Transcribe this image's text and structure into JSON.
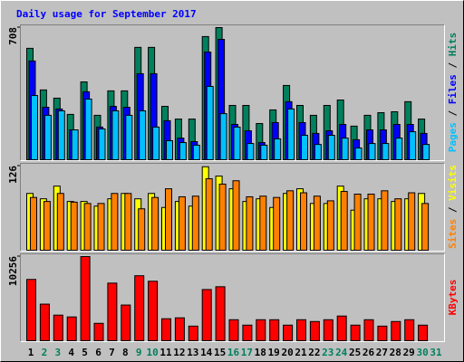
{
  "chart_data": [
    {
      "type": "bar",
      "title": "Daily usage for September 2017",
      "ylim": [
        0,
        708
      ],
      "yticks": [
        708
      ],
      "legend_separator": " / ",
      "series": [
        {
          "name": "Pages",
          "color": "#00c0ff",
          "values": [
            344,
            238,
            262,
            160,
            325,
            165,
            262,
            238,
            262,
            175,
            102,
            92,
            78,
            393,
            247,
            175,
            87,
            78,
            112,
            272,
            131,
            82,
            131,
            116,
            63,
            87,
            87,
            116,
            150,
            82,
            null
          ]
        },
        {
          "name": "Files",
          "color": "#0000ff",
          "values": [
            529,
            281,
            272,
            160,
            364,
            175,
            286,
            281,
            461,
            461,
            209,
            116,
            97,
            577,
            645,
            189,
            155,
            92,
            199,
            311,
            199,
            141,
            155,
            189,
            107,
            160,
            160,
            189,
            189,
            141,
            null
          ]
        },
        {
          "name": "Hits",
          "color": "#00805c",
          "values": [
            597,
            374,
            330,
            243,
            417,
            238,
            369,
            369,
            602,
            602,
            286,
            218,
            218,
            660,
            708,
            291,
            291,
            194,
            267,
            398,
            291,
            238,
            291,
            320,
            180,
            238,
            252,
            257,
            311,
            218,
            null
          ]
        }
      ]
    },
    {
      "type": "bar",
      "ylim": [
        0,
        126
      ],
      "yticks": [
        126
      ],
      "legend_separator": " / ",
      "series": [
        {
          "name": "Sites",
          "color": "#ff8000",
          "values": [
            79,
            73,
            85,
            72,
            70,
            70,
            85,
            85,
            62,
            79,
            92,
            80,
            81,
            107,
            99,
            104,
            80,
            81,
            79,
            89,
            86,
            81,
            74,
            88,
            84,
            84,
            89,
            77,
            86,
            70,
            null
          ]
        },
        {
          "name": "Visits",
          "color": "#ffff00",
          "values": [
            85,
            77,
            96,
            73,
            73,
            66,
            77,
            85,
            77,
            85,
            64,
            73,
            66,
            125,
            111,
            92,
            73,
            77,
            64,
            85,
            92,
            70,
            70,
            96,
            60,
            77,
            77,
            73,
            77,
            85,
            null
          ]
        }
      ]
    },
    {
      "type": "bar",
      "ylim": [
        0,
        10256
      ],
      "yticks": [
        10256
      ],
      "series": [
        {
          "name": "KBytes",
          "color": "#ff0000",
          "values": [
            7470,
            4460,
            3120,
            2900,
            10256,
            2120,
            7020,
            4350,
            7920,
            7250,
            2680,
            2790,
            1780,
            6240,
            6580,
            2560,
            1900,
            2560,
            2560,
            1900,
            2560,
            2340,
            2560,
            3010,
            1900,
            2560,
            1780,
            2340,
            2560,
            1900,
            null
          ]
        }
      ],
      "categories": [
        "1",
        "2",
        "3",
        "4",
        "5",
        "6",
        "7",
        "8",
        "9",
        "10",
        "11",
        "12",
        "13",
        "14",
        "15",
        "16",
        "17",
        "18",
        "19",
        "20",
        "21",
        "22",
        "23",
        "24",
        "25",
        "26",
        "27",
        "28",
        "29",
        "30",
        "31"
      ],
      "category_colors": [
        "#000000",
        "#00805c",
        "#00805c",
        "#000000",
        "#000000",
        "#000000",
        "#000000",
        "#000000",
        "#00805c",
        "#00805c",
        "#000000",
        "#000000",
        "#000000",
        "#000000",
        "#000000",
        "#00805c",
        "#00805c",
        "#000000",
        "#000000",
        "#000000",
        "#000000",
        "#000000",
        "#00805c",
        "#00805c",
        "#000000",
        "#000000",
        "#000000",
        "#000000",
        "#000000",
        "#00805c",
        "#00805c"
      ]
    }
  ]
}
